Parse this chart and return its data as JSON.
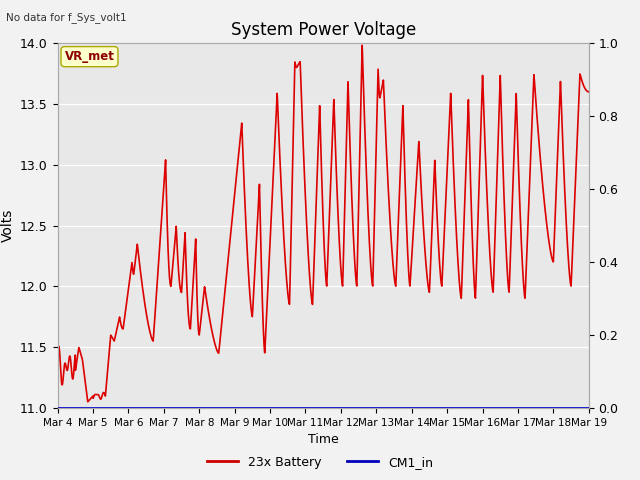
{
  "title": "System Power Voltage",
  "title_top_left": "No data for f_Sys_volt1",
  "ylabel": "Volts",
  "xlabel": "Time",
  "ylim_left": [
    11.0,
    14.0
  ],
  "ylim_right": [
    0.0,
    1.0
  ],
  "plot_bg": "#e8e8e8",
  "fig_bg": "#f2f2f2",
  "vr_met_label": "VR_met",
  "legend_entries": [
    "23x Battery",
    "CM1_in"
  ],
  "legend_colors": [
    "#cc0000",
    "#0000bb"
  ],
  "xtick_labels": [
    "Mar 4",
    "Mar 5",
    "Mar 6",
    "Mar 7",
    "Mar 8",
    "Mar 9",
    "Mar 10",
    "Mar 11",
    "Mar 12",
    "Mar 13",
    "Mar 14",
    "Mar 15",
    "Mar 16",
    "Mar 17",
    "Mar 18",
    "Mar 19"
  ],
  "right_yticks": [
    0.0,
    0.2,
    0.4,
    0.6,
    0.8,
    1.0
  ],
  "left_yticks": [
    11.0,
    11.5,
    12.0,
    12.5,
    13.0,
    13.5,
    14.0
  ],
  "battery_color": "#dd0000",
  "cm1_color": "#0000cc",
  "line_width": 1.2
}
